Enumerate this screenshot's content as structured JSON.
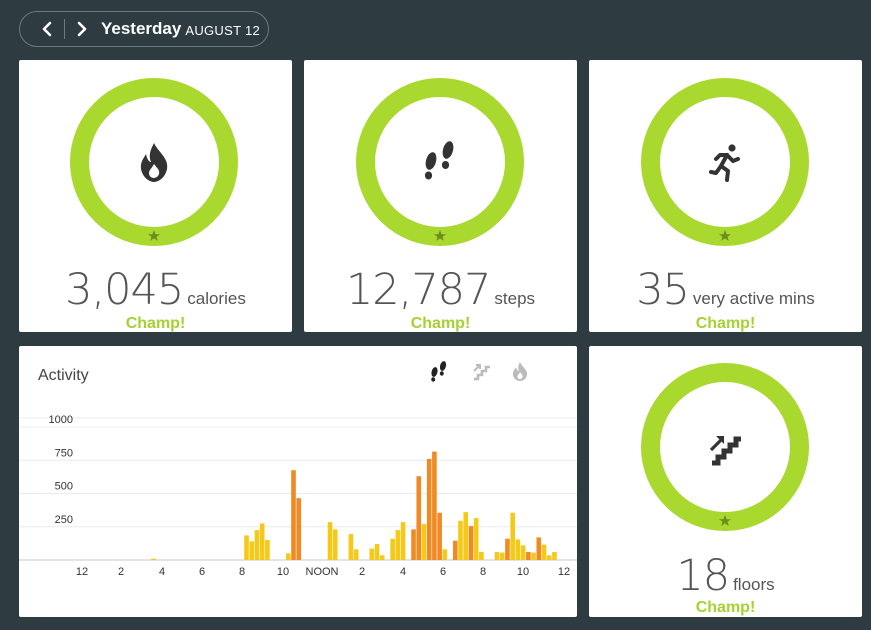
{
  "header": {
    "prev_label": "previous day",
    "next_label": "next day",
    "day": "Yesterday",
    "date": "AUGUST 12"
  },
  "stats": [
    {
      "id": "calories",
      "value": "3,045",
      "unit": "calories",
      "badge": "Champ!",
      "icon": "flame-icon",
      "progress": 1.0
    },
    {
      "id": "steps",
      "value": "12,787",
      "unit": "steps",
      "badge": "Champ!",
      "icon": "footsteps-icon",
      "progress": 1.0
    },
    {
      "id": "active",
      "value": "35",
      "unit": "very active mins",
      "badge": "Champ!",
      "icon": "running-person-icon",
      "progress": 1.0
    },
    {
      "id": "floors",
      "value": "18",
      "unit": "floors",
      "badge": "Champ!",
      "icon": "stairs-icon",
      "progress": 1.0
    }
  ],
  "activity": {
    "title": "Activity",
    "tabs": [
      "footsteps-icon",
      "stairs-icon",
      "flame-icon"
    ],
    "active_tab": "footsteps-icon"
  },
  "colors": {
    "ring": "#a9d82e",
    "badge": "#a4d231",
    "bar_yellow": "#f5c918",
    "bar_orange": "#f08a24",
    "background": "#2e3b41"
  },
  "chart_data": {
    "type": "bar",
    "ylim": [
      0,
      1000
    ],
    "yticks": [
      250,
      500,
      750,
      1000
    ],
    "xticks": [
      "12",
      "2",
      "4",
      "6",
      "8",
      "10",
      "NOON",
      "2",
      "4",
      "6",
      "8",
      "10",
      "12"
    ],
    "hours": 24,
    "series": [
      {
        "color": "#f5c918",
        "values": [
          0,
          0,
          0,
          0,
          0,
          0,
          0,
          0,
          0,
          0,
          0,
          0,
          0,
          0,
          0,
          0,
          0,
          0,
          0,
          0,
          0,
          0,
          0,
          0,
          0,
          0,
          10,
          0,
          0,
          0,
          0,
          0,
          0,
          0,
          0,
          0,
          0,
          0,
          0,
          0,
          0,
          0,
          0,
          0,
          0,
          0,
          0,
          0,
          0,
          0,
          0,
          0,
          0,
          0,
          0,
          0,
          0,
          0,
          0,
          0,
          0,
          0,
          0,
          0,
          0,
          0,
          0,
          0,
          0,
          0,
          0,
          0,
          0,
          0,
          0,
          0,
          0,
          0,
          0,
          0,
          0,
          0,
          0,
          0,
          0,
          0,
          0,
          0,
          0,
          0,
          0,
          0,
          0,
          0,
          0,
          0,
          0,
          0,
          0,
          0,
          0,
          0,
          0,
          0,
          0,
          0,
          0,
          0,
          0,
          0,
          0,
          0,
          0,
          0,
          0,
          0,
          0,
          0,
          0,
          0,
          0,
          0,
          0,
          0,
          0,
          0,
          0,
          0,
          0,
          0,
          0,
          0,
          0,
          0,
          0,
          0,
          0,
          0,
          0,
          0,
          0,
          0,
          0,
          0,
          0,
          0,
          0,
          0,
          0,
          0,
          0,
          0,
          0,
          0,
          0,
          0,
          0,
          0,
          0,
          0,
          0,
          0,
          0,
          0,
          0,
          0,
          0,
          0,
          0,
          0,
          0,
          0,
          0,
          0,
          0,
          0,
          0,
          0,
          0,
          0,
          0,
          0,
          0,
          0,
          0,
          0,
          0,
          0,
          0,
          0,
          0,
          0,
          0,
          0,
          0,
          0,
          0,
          0,
          0,
          0,
          0,
          0,
          0,
          0,
          0,
          0,
          0,
          0,
          0,
          0,
          0,
          0,
          0,
          0,
          0,
          0,
          0,
          0,
          0,
          0,
          0,
          0,
          0,
          0,
          0,
          0,
          0,
          0,
          0,
          0,
          0,
          0,
          0,
          0,
          0,
          0,
          0,
          0,
          0,
          0,
          0,
          0,
          0,
          0,
          0,
          0,
          0,
          0,
          0,
          0,
          0,
          0,
          0,
          0,
          0,
          0,
          0,
          0,
          0,
          0,
          0,
          0,
          0,
          0,
          0,
          0,
          0,
          0,
          0,
          0,
          0,
          0,
          0,
          0,
          0,
          0,
          0,
          0,
          0,
          0,
          0,
          0,
          0,
          0,
          0,
          0,
          0,
          0,
          0,
          0,
          0,
          0,
          0,
          0,
          0,
          0,
          0,
          0,
          0,
          0,
          0,
          0,
          0,
          0
        ]
      }
    ],
    "bars": [
      {
        "h": 4.55,
        "v": 10,
        "c": "y"
      },
      {
        "h": 9.0,
        "v": 185,
        "c": "y"
      },
      {
        "h": 9.25,
        "v": 140,
        "c": "y"
      },
      {
        "h": 9.5,
        "v": 225,
        "c": "y"
      },
      {
        "h": 9.75,
        "v": 275,
        "c": "y"
      },
      {
        "h": 10.0,
        "v": 150,
        "c": "y"
      },
      {
        "h": 11.0,
        "v": 50,
        "c": "y"
      },
      {
        "h": 11.25,
        "v": 675,
        "c": "o"
      },
      {
        "h": 11.5,
        "v": 465,
        "c": "o"
      },
      {
        "h": 13.0,
        "v": 285,
        "c": "y"
      },
      {
        "h": 13.25,
        "v": 230,
        "c": "y"
      },
      {
        "h": 14.0,
        "v": 195,
        "c": "y"
      },
      {
        "h": 14.25,
        "v": 80,
        "c": "y"
      },
      {
        "h": 15.0,
        "v": 85,
        "c": "y"
      },
      {
        "h": 15.25,
        "v": 120,
        "c": "y"
      },
      {
        "h": 15.5,
        "v": 35,
        "c": "y"
      },
      {
        "h": 16.0,
        "v": 160,
        "c": "y"
      },
      {
        "h": 16.25,
        "v": 225,
        "c": "y"
      },
      {
        "h": 16.5,
        "v": 285,
        "c": "y"
      },
      {
        "h": 17.0,
        "v": 230,
        "c": "o"
      },
      {
        "h": 17.25,
        "v": 630,
        "c": "o"
      },
      {
        "h": 17.5,
        "v": 270,
        "c": "y"
      },
      {
        "h": 17.75,
        "v": 760,
        "c": "o"
      },
      {
        "h": 18.0,
        "v": 815,
        "c": "o"
      },
      {
        "h": 18.25,
        "v": 355,
        "c": "o"
      },
      {
        "h": 18.5,
        "v": 80,
        "c": "y"
      },
      {
        "h": 19.0,
        "v": 145,
        "c": "o"
      },
      {
        "h": 19.25,
        "v": 295,
        "c": "y"
      },
      {
        "h": 19.5,
        "v": 360,
        "c": "y"
      },
      {
        "h": 19.75,
        "v": 255,
        "c": "o"
      },
      {
        "h": 20.0,
        "v": 315,
        "c": "y"
      },
      {
        "h": 20.25,
        "v": 60,
        "c": "y"
      },
      {
        "h": 21.0,
        "v": 60,
        "c": "y"
      },
      {
        "h": 21.25,
        "v": 55,
        "c": "y"
      },
      {
        "h": 21.5,
        "v": 160,
        "c": "o"
      },
      {
        "h": 21.75,
        "v": 355,
        "c": "y"
      },
      {
        "h": 22.0,
        "v": 155,
        "c": "y"
      },
      {
        "h": 22.25,
        "v": 110,
        "c": "y"
      },
      {
        "h": 22.5,
        "v": 60,
        "c": "o"
      },
      {
        "h": 22.75,
        "v": 55,
        "c": "y"
      },
      {
        "h": 23.0,
        "v": 170,
        "c": "o"
      },
      {
        "h": 23.25,
        "v": 115,
        "c": "y"
      },
      {
        "h": 23.5,
        "v": 35,
        "c": "y"
      },
      {
        "h": 23.75,
        "v": 60,
        "c": "y"
      }
    ]
  }
}
